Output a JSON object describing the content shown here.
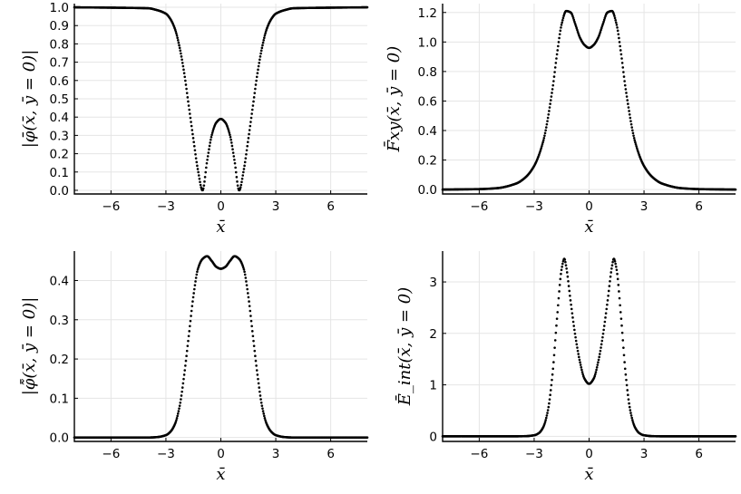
{
  "chart_data": [
    {
      "type": "scatter",
      "ylabel": "|φ̄(x̄, ȳ = 0)|",
      "xlabel": "x̄",
      "xlim": [
        -8,
        8
      ],
      "ylim": [
        -0.02,
        1.02
      ],
      "xticks": [
        -6,
        -3,
        0,
        3,
        6
      ],
      "xticklabels": [
        "−6",
        "−3",
        "0",
        "3",
        "6"
      ],
      "yticks": [
        0.0,
        0.1,
        0.2,
        0.3,
        0.4,
        0.5,
        0.6,
        0.7,
        0.8,
        0.9,
        1.0
      ],
      "yticklabels": [
        "0.0",
        "0.1",
        "0.2",
        "0.3",
        "0.4",
        "0.5",
        "0.6",
        "0.7",
        "0.8",
        "0.9",
        "1.0"
      ],
      "grid": true,
      "series": [
        {
          "color": "#000000",
          "x": [
            -8,
            -4,
            -3.5,
            -3,
            -2.75,
            -2.5,
            -2.25,
            -2,
            -1.75,
            -1.5,
            -1.25,
            -1,
            -0.75,
            -0.5,
            -0.25,
            0,
            0.25,
            0.5,
            0.75,
            1,
            1.25,
            1.5,
            1.75,
            2,
            2.25,
            2.5,
            2.75,
            3,
            3.5,
            4,
            8
          ],
          "y": [
            1.0,
            0.995,
            0.985,
            0.965,
            0.935,
            0.88,
            0.78,
            0.64,
            0.46,
            0.28,
            0.11,
            0.0,
            0.16,
            0.3,
            0.37,
            0.39,
            0.37,
            0.3,
            0.16,
            0.0,
            0.11,
            0.28,
            0.46,
            0.64,
            0.78,
            0.88,
            0.935,
            0.965,
            0.985,
            0.995,
            1.0
          ]
        }
      ]
    },
    {
      "type": "scatter",
      "ylabel": "F̄xy(x̄, ȳ = 0)",
      "xlabel": "x̄",
      "xlim": [
        -8,
        8
      ],
      "ylim": [
        -0.03,
        1.26
      ],
      "xticks": [
        -6,
        -3,
        0,
        3,
        6
      ],
      "xticklabels": [
        "−6",
        "−3",
        "0",
        "3",
        "6"
      ],
      "yticks": [
        0.0,
        0.2,
        0.4,
        0.6,
        0.8,
        1.0,
        1.2
      ],
      "yticklabels": [
        "0.0",
        "0.2",
        "0.4",
        "0.6",
        "0.8",
        "1.0",
        "1.2"
      ],
      "grid": true,
      "series": [
        {
          "color": "#000000",
          "x": [
            -8,
            -6,
            -5,
            -4,
            -3.5,
            -3,
            -2.5,
            -2,
            -1.75,
            -1.5,
            -1.25,
            -1,
            -0.75,
            -0.5,
            -0.25,
            0,
            0.25,
            0.5,
            0.75,
            1,
            1.25,
            1.5,
            1.75,
            2,
            2.5,
            3,
            3.5,
            4,
            5,
            6,
            8
          ],
          "y": [
            0.0,
            0.003,
            0.01,
            0.04,
            0.08,
            0.16,
            0.33,
            0.68,
            0.92,
            1.12,
            1.21,
            1.2,
            1.12,
            1.03,
            0.98,
            0.96,
            0.98,
            1.03,
            1.12,
            1.2,
            1.21,
            1.12,
            0.92,
            0.68,
            0.33,
            0.16,
            0.08,
            0.04,
            0.01,
            0.003,
            0.0
          ]
        }
      ]
    },
    {
      "type": "scatter",
      "ylabel": "|φ̃̄(x̄, ȳ = 0)|",
      "xlabel": "x̄",
      "xlim": [
        -8,
        8
      ],
      "ylim": [
        -0.01,
        0.475
      ],
      "xticks": [
        -6,
        -3,
        0,
        3,
        6
      ],
      "xticklabels": [
        "−6",
        "−3",
        "0",
        "3",
        "6"
      ],
      "yticks": [
        0.0,
        0.1,
        0.2,
        0.3,
        0.4
      ],
      "yticklabels": [
        "0.0",
        "0.1",
        "0.2",
        "0.3",
        "0.4"
      ],
      "grid": true,
      "series": [
        {
          "color": "#000000",
          "x": [
            -8,
            -4,
            -3.5,
            -3,
            -2.75,
            -2.5,
            -2.25,
            -2,
            -1.75,
            -1.5,
            -1.25,
            -1,
            -0.75,
            -0.5,
            -0.25,
            0,
            0.25,
            0.5,
            0.75,
            1,
            1.25,
            1.5,
            1.75,
            2,
            2.25,
            2.5,
            2.75,
            3,
            3.5,
            4,
            8
          ],
          "y": [
            0.0,
            0.0,
            0.001,
            0.006,
            0.015,
            0.035,
            0.08,
            0.16,
            0.26,
            0.36,
            0.43,
            0.455,
            0.462,
            0.45,
            0.435,
            0.43,
            0.435,
            0.45,
            0.462,
            0.455,
            0.43,
            0.36,
            0.26,
            0.16,
            0.08,
            0.035,
            0.015,
            0.006,
            0.001,
            0.0,
            0.0
          ]
        }
      ]
    },
    {
      "type": "scatter",
      "ylabel": "Ē_int(x̄, ȳ = 0)",
      "xlabel": "x̄",
      "xlim": [
        -8,
        8
      ],
      "ylim": [
        -0.1,
        3.6
      ],
      "xticks": [
        -6,
        -3,
        0,
        3,
        6
      ],
      "xticklabels": [
        "−6",
        "−3",
        "0",
        "3",
        "6"
      ],
      "yticks": [
        0,
        1,
        2,
        3
      ],
      "yticklabels": [
        "0",
        "1",
        "2",
        "3"
      ],
      "grid": true,
      "series": [
        {
          "color": "#000000",
          "x": [
            -8,
            -4,
            -3.5,
            -3,
            -2.75,
            -2.5,
            -2.25,
            -2,
            -1.75,
            -1.5,
            -1.35,
            -1.25,
            -1,
            -0.75,
            -0.5,
            -0.25,
            0,
            0.25,
            0.5,
            0.75,
            1,
            1.25,
            1.35,
            1.5,
            1.75,
            2,
            2.25,
            2.5,
            2.75,
            3,
            3.5,
            4,
            8
          ],
          "y": [
            0.0,
            0.0,
            0.002,
            0.02,
            0.06,
            0.18,
            0.5,
            1.2,
            2.3,
            3.25,
            3.45,
            3.3,
            2.6,
            1.95,
            1.45,
            1.12,
            1.02,
            1.12,
            1.45,
            1.95,
            2.6,
            3.3,
            3.45,
            3.25,
            2.3,
            1.2,
            0.5,
            0.18,
            0.06,
            0.02,
            0.002,
            0.0,
            0.0
          ]
        }
      ]
    }
  ]
}
